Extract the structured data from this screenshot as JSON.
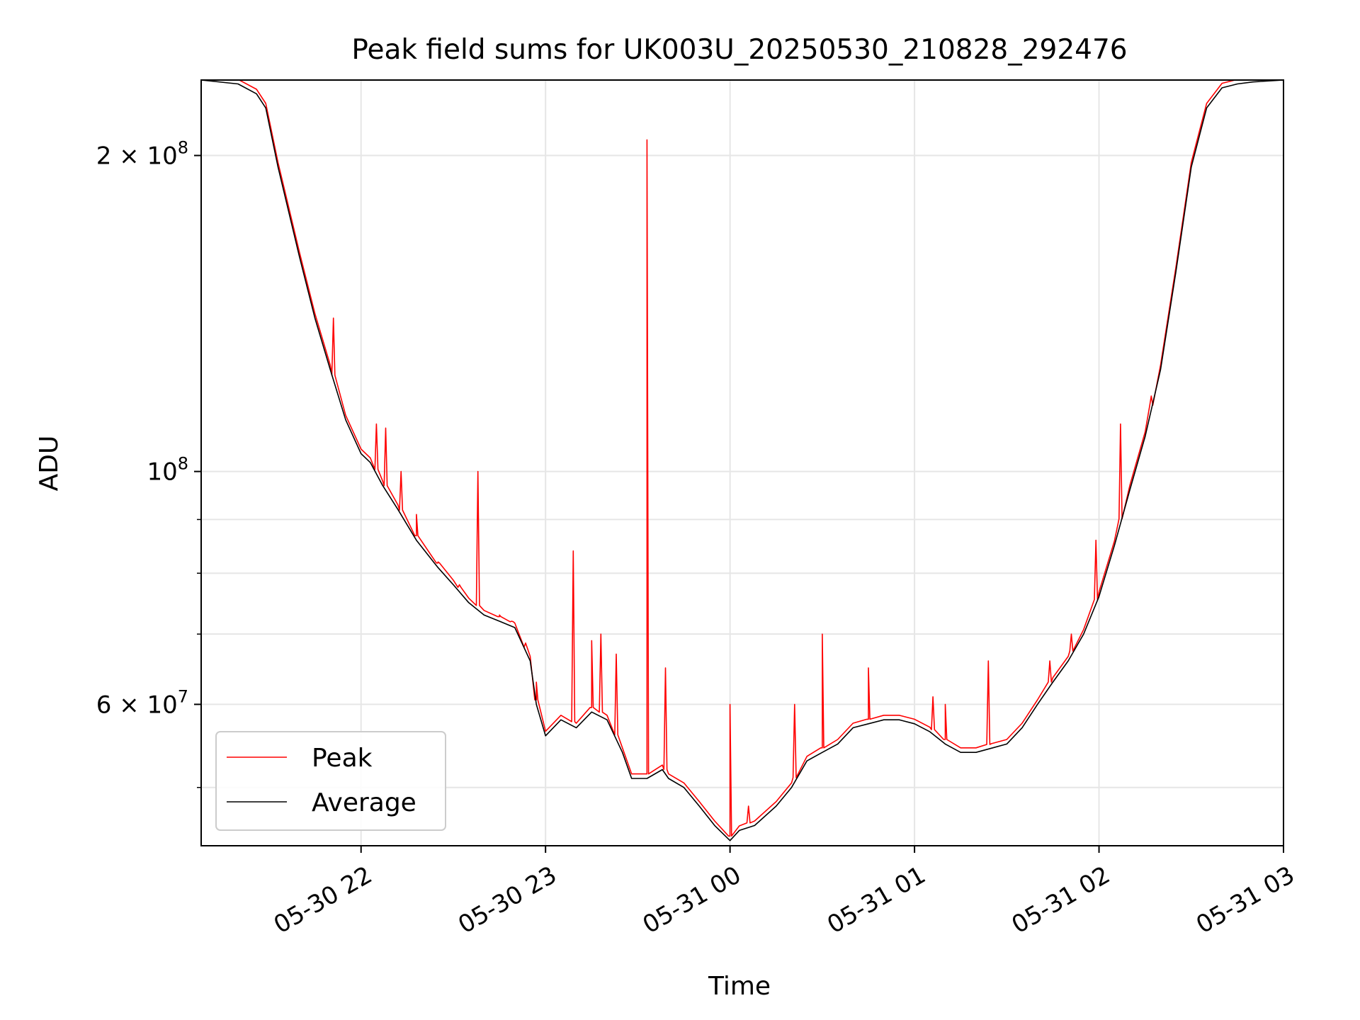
{
  "chart_data": {
    "type": "line",
    "title": "Peak field sums for UK003U_20250530_210828_292476",
    "xlabel": "Time",
    "ylabel": "ADU",
    "yscale": "log",
    "ylim": [
      44000000,
      236000000
    ],
    "xlim": [
      "2025-05-30 21:08",
      "2025-05-31 03:00"
    ],
    "x_ticks": [
      {
        "t": "2025-05-30 22:00",
        "label": "05-30 22"
      },
      {
        "t": "2025-05-30 23:00",
        "label": "05-30 23"
      },
      {
        "t": "2025-05-31 00:00",
        "label": "05-31 00"
      },
      {
        "t": "2025-05-31 01:00",
        "label": "05-31 01"
      },
      {
        "t": "2025-05-31 02:00",
        "label": "05-31 02"
      },
      {
        "t": "2025-05-31 03:00",
        "label": "05-31 03"
      }
    ],
    "y_major_ticks": [
      {
        "value": 60000000,
        "mantissa": "6",
        "exponent": "7"
      },
      {
        "value": 100000000,
        "mantissa": "",
        "exponent": "8"
      },
      {
        "value": 200000000,
        "mantissa": "2",
        "exponent": "8"
      }
    ],
    "y_minor_ticks": [
      50000000,
      70000000,
      80000000,
      90000000
    ],
    "grid": true,
    "legend": {
      "position": "lower-left"
    },
    "series": [
      {
        "name": "Average",
        "color": "#000000",
        "x": [
          "2025-05-30 21:08",
          "2025-05-30 21:20",
          "2025-05-30 21:26",
          "2025-05-30 21:29",
          "2025-05-30 21:33",
          "2025-05-30 21:40",
          "2025-05-30 21:45",
          "2025-05-30 21:50",
          "2025-05-30 21:55",
          "2025-05-30 22:00",
          "2025-05-30 22:03",
          "2025-05-30 22:07",
          "2025-05-30 22:12",
          "2025-05-30 22:18",
          "2025-05-30 22:25",
          "2025-05-30 22:30",
          "2025-05-30 22:35",
          "2025-05-30 22:40",
          "2025-05-30 22:45",
          "2025-05-30 22:50",
          "2025-05-30 22:55",
          "2025-05-30 22:57",
          "2025-05-30 23:00",
          "2025-05-30 23:05",
          "2025-05-30 23:10",
          "2025-05-30 23:15",
          "2025-05-30 23:20",
          "2025-05-30 23:25",
          "2025-05-30 23:28",
          "2025-05-30 23:33",
          "2025-05-30 23:38",
          "2025-05-30 23:40",
          "2025-05-30 23:45",
          "2025-05-30 23:50",
          "2025-05-30 23:55",
          "2025-05-31 00:00",
          "2025-05-31 00:03",
          "2025-05-31 00:08",
          "2025-05-31 00:15",
          "2025-05-31 00:20",
          "2025-05-31 00:25",
          "2025-05-31 00:30",
          "2025-05-31 00:35",
          "2025-05-31 00:40",
          "2025-05-31 00:45",
          "2025-05-31 00:50",
          "2025-05-31 00:55",
          "2025-05-31 01:00",
          "2025-05-31 01:05",
          "2025-05-31 01:10",
          "2025-05-31 01:15",
          "2025-05-31 01:20",
          "2025-05-31 01:25",
          "2025-05-31 01:30",
          "2025-05-31 01:35",
          "2025-05-31 01:40",
          "2025-05-31 01:45",
          "2025-05-31 01:50",
          "2025-05-31 01:55",
          "2025-05-31 02:00",
          "2025-05-31 02:05",
          "2025-05-31 02:10",
          "2025-05-31 02:15",
          "2025-05-31 02:20",
          "2025-05-31 02:25",
          "2025-05-31 02:30",
          "2025-05-31 02:35",
          "2025-05-31 02:40",
          "2025-05-31 02:45",
          "2025-05-31 02:50",
          "2025-05-31 03:00"
        ],
        "y": [
          236000000,
          234000000,
          229000000,
          222000000,
          195000000,
          160000000,
          140000000,
          125000000,
          112000000,
          104000000,
          102000000,
          97000000,
          92000000,
          86000000,
          81000000,
          78000000,
          75000000,
          73000000,
          72000000,
          71000000,
          66000000,
          60000000,
          56000000,
          58000000,
          57000000,
          59000000,
          58000000,
          54000000,
          51000000,
          51000000,
          52000000,
          51000000,
          50000000,
          48000000,
          46000000,
          44500000,
          45500000,
          46000000,
          48000000,
          50000000,
          53000000,
          54000000,
          55000000,
          57000000,
          57500000,
          58000000,
          58000000,
          57500000,
          56500000,
          55000000,
          54000000,
          54000000,
          54500000,
          55000000,
          57000000,
          60000000,
          63000000,
          66000000,
          70000000,
          76000000,
          85000000,
          96000000,
          108000000,
          125000000,
          155000000,
          195000000,
          222000000,
          232000000,
          234000000,
          235000000,
          236000000
        ]
      },
      {
        "name": "Peak",
        "color": "#ff0000",
        "spikes": [
          {
            "t": "2025-05-30 21:51",
            "y": 140000000
          },
          {
            "t": "2025-05-30 22:05",
            "y": 111000000
          },
          {
            "t": "2025-05-30 22:08",
            "y": 110000000
          },
          {
            "t": "2025-05-30 22:13",
            "y": 100000000
          },
          {
            "t": "2025-05-30 22:18",
            "y": 91000000
          },
          {
            "t": "2025-05-30 22:25",
            "y": 82000000
          },
          {
            "t": "2025-05-30 22:32",
            "y": 78000000
          },
          {
            "t": "2025-05-30 22:38",
            "y": 100000000
          },
          {
            "t": "2025-05-30 22:45",
            "y": 73000000
          },
          {
            "t": "2025-05-30 22:49",
            "y": 72000000
          },
          {
            "t": "2025-05-30 22:53",
            "y": 68000000
          },
          {
            "t": "2025-05-30 22:57",
            "y": 63000000
          },
          {
            "t": "2025-05-30 23:09",
            "y": 84000000
          },
          {
            "t": "2025-05-30 23:15",
            "y": 69000000
          },
          {
            "t": "2025-05-30 23:18",
            "y": 70000000
          },
          {
            "t": "2025-05-30 23:23",
            "y": 67000000
          },
          {
            "t": "2025-05-30 23:33",
            "y": 207000000
          },
          {
            "t": "2025-05-30 23:39",
            "y": 65000000
          },
          {
            "t": "2025-05-31 00:00",
            "y": 60000000
          },
          {
            "t": "2025-05-31 00:06",
            "y": 48000000
          },
          {
            "t": "2025-05-31 00:21",
            "y": 60000000
          },
          {
            "t": "2025-05-31 00:30",
            "y": 70000000
          },
          {
            "t": "2025-05-31 00:45",
            "y": 65000000
          },
          {
            "t": "2025-05-31 01:06",
            "y": 61000000
          },
          {
            "t": "2025-05-31 01:10",
            "y": 60000000
          },
          {
            "t": "2025-05-31 01:24",
            "y": 66000000
          },
          {
            "t": "2025-05-31 01:44",
            "y": 66000000
          },
          {
            "t": "2025-05-31 01:51",
            "y": 70000000
          },
          {
            "t": "2025-05-31 01:59",
            "y": 86000000
          },
          {
            "t": "2025-05-31 02:07",
            "y": 111000000
          },
          {
            "t": "2025-05-31 02:17",
            "y": 118000000
          }
        ]
      }
    ]
  }
}
